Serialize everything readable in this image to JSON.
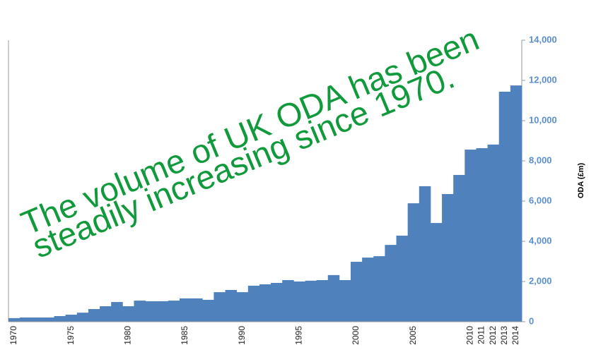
{
  "chart_data": {
    "type": "bar",
    "categories": [
      "1970",
      null,
      null,
      null,
      null,
      "1975",
      null,
      null,
      null,
      null,
      "1980",
      null,
      null,
      null,
      null,
      "1985",
      null,
      null,
      null,
      null,
      "1990",
      null,
      null,
      null,
      null,
      "1995",
      null,
      null,
      null,
      null,
      "2000",
      null,
      null,
      null,
      null,
      "2005",
      null,
      null,
      null,
      null,
      "2010",
      "2011",
      "2012",
      "2013",
      "2014"
    ],
    "values": [
      180,
      210,
      210,
      210,
      280,
      350,
      450,
      630,
      770,
      980,
      770,
      1050,
      1020,
      1020,
      1050,
      1160,
      1160,
      1090,
      1470,
      1580,
      1470,
      1790,
      1860,
      1930,
      2070,
      2000,
      2040,
      2070,
      2320,
      2070,
      2980,
      3190,
      3260,
      3820,
      4280,
      5890,
      6740,
      4910,
      6350,
      7300,
      8560,
      8630,
      8810,
      11440,
      11750
    ],
    "color": "#4f81bd",
    "y_label": "ODA (£m)",
    "ylim": [
      0,
      14000
    ],
    "yticks": [
      0,
      {
        "value": 2000,
        "label": "2,000"
      },
      {
        "value": 4000,
        "label": "4,000"
      },
      {
        "value": 6000,
        "label": "6,000"
      },
      {
        "value": 8000,
        "label": "8,000"
      },
      {
        "value": 10000,
        "label": "10,000"
      },
      {
        "value": 12000,
        "label": "12,000"
      },
      {
        "value": 14000,
        "label": "14,000"
      }
    ],
    "annotations": [
      "The volume of UK ODA has been",
      "steadily increasing since 1970."
    ]
  }
}
